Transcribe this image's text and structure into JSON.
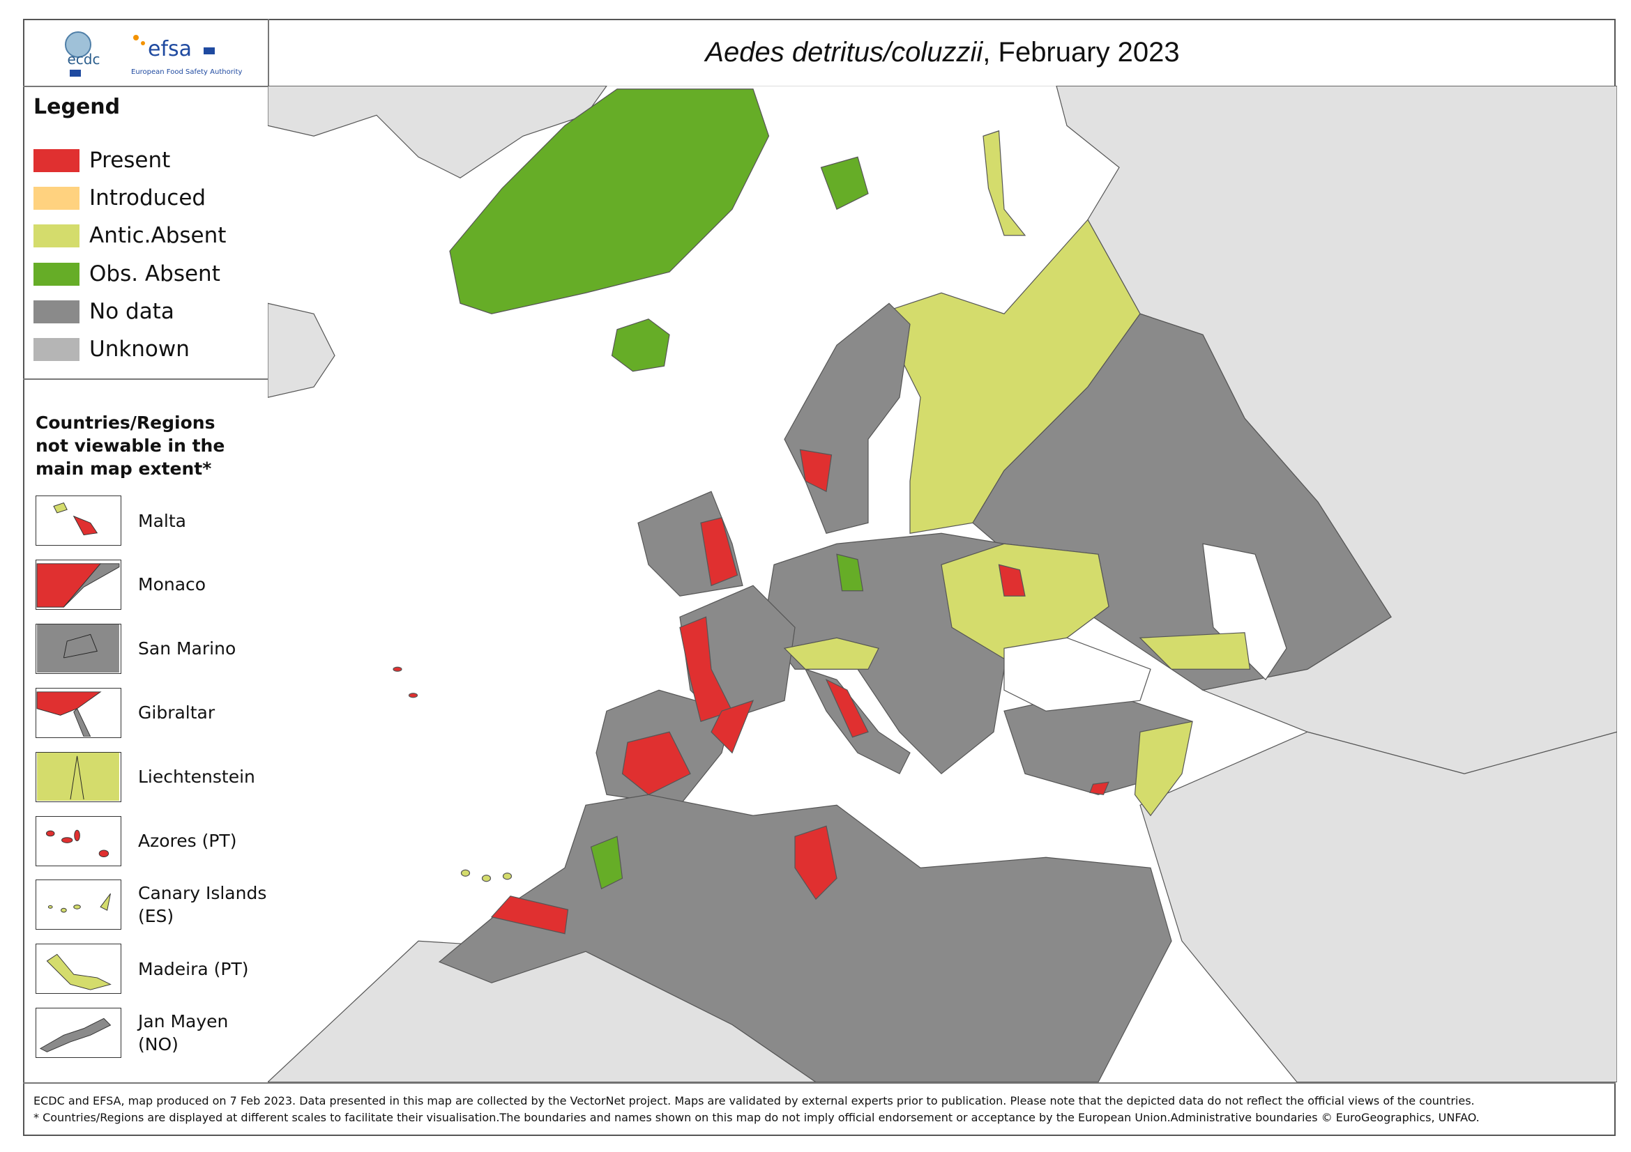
{
  "header": {
    "logos": {
      "ecdc": "ecdc",
      "efsa": "efsa",
      "efsa_subtitle": "European Food Safety Authority"
    },
    "title": {
      "species": "Aedes detritus/coluzzii",
      "date": ", February 2023"
    }
  },
  "legend": {
    "title": "Legend",
    "items": [
      {
        "label": "Present",
        "color": "#e03030"
      },
      {
        "label": "Introduced",
        "color": "#ffd27f"
      },
      {
        "label": "Antic.Absent",
        "color": "#d4dc6c"
      },
      {
        "label": "Obs. Absent",
        "color": "#66ad27"
      },
      {
        "label": "No data",
        "color": "#8a8a8a"
      },
      {
        "label": "Unknown",
        "color": "#b5b5b5"
      }
    ]
  },
  "insets": {
    "title": "Countries/Regions not viewable in the main map extent*",
    "items": [
      "Malta",
      "Monaco",
      "San Marino",
      "Gibraltar",
      "Liechtenstein",
      "Azores (PT)",
      "Canary Islands (ES)",
      "Madeira (PT)",
      "Jan Mayen (NO)"
    ]
  },
  "footer": {
    "lines": [
      "ECDC and EFSA, map produced on 7 Feb 2023. Data presented in this map are collected by the VectorNet project. Maps are validated by external experts prior to publication. Please note that the depicted data do not reflect the official views of the countries.",
      "* Countries/Regions are displayed at different scales to facilitate their visualisation.The boundaries and names shown on this map do not imply official endorsement or acceptance by the European Union.Administrative boundaries © EuroGeographics, UNFAO."
    ]
  }
}
